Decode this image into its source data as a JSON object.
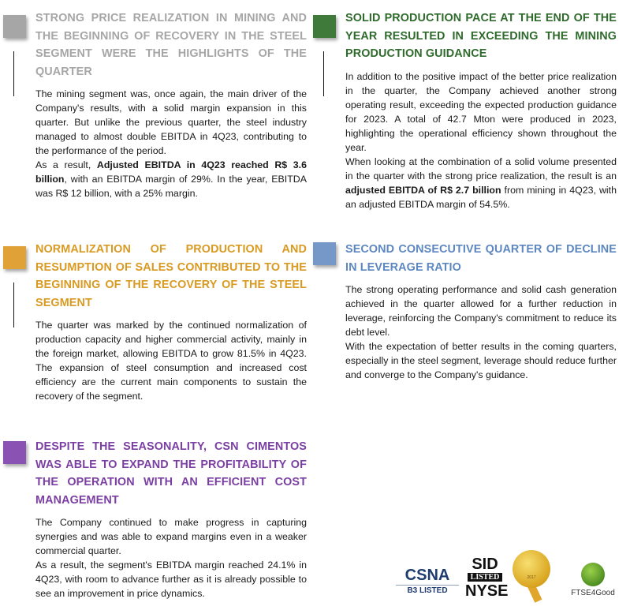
{
  "colors": {
    "gray": "#a6a6a6",
    "green": "#2f6b2c",
    "green_square": "#3f7a3b",
    "orange": "#d99a22",
    "orange_square": "#e0a236",
    "blue": "#5d87c0",
    "blue_square": "#7598c8",
    "purple": "#7b3fa3",
    "purple_square": "#8a52b3"
  },
  "sections": [
    {
      "title": "STRONG PRICE REALIZATION IN MINING AND THE BEGINNING OF RECOVERY IN THE STEEL SEGMENT WERE THE HIGHLIGHTS OF THE QUARTER",
      "paragraphs": [
        [
          {
            "text": "The mining segment was, once again, the main driver of the Company's results, with a solid margin expansion in this quarter. But unlike the previous quarter, the steel industry managed to almost double EBITDA in 4Q23, contributing to the performance of the period.",
            "bold": false
          }
        ],
        [
          {
            "text": "As a result, ",
            "bold": false
          },
          {
            "text": "Adjusted EBITDA in 4Q23 reached R$ 3.6 billion",
            "bold": true
          },
          {
            "text": ", with an EBITDA margin of 29%. In the year, EBITDA was R$ 12 billion, with a 25% margin.",
            "bold": false
          }
        ]
      ]
    },
    {
      "title": "SOLID PRODUCTION PACE AT THE END OF THE YEAR RESULTED IN EXCEEDING THE MINING PRODUCTION GUIDANCE",
      "paragraphs": [
        [
          {
            "text": "In addition to the positive impact of the better price realization in the quarter, the Company achieved another strong operating result, exceeding the expected production guidance for 2023. A total of 42.7 Mton were produced in 2023, highlighting the operational efficiency shown throughout the year.",
            "bold": false
          }
        ],
        [
          {
            "text": "When looking at the combination of a solid volume presented in the quarter with the strong price realization, the result is an ",
            "bold": false
          },
          {
            "text": "adjusted EBITDA of R$ 2.7 billion",
            "bold": true
          },
          {
            "text": " from mining in 4Q23, with an adjusted EBITDA margin of 54.5%.",
            "bold": false
          }
        ]
      ]
    },
    {
      "title": "NORMALIZATION OF PRODUCTION AND RESUMPTION OF SALES CONTRIBUTED TO THE BEGINNING OF THE RECOVERY OF THE STEEL SEGMENT",
      "paragraphs": [
        [
          {
            "text": "The quarter was marked by the continued normalization of production capacity and higher commercial activity, mainly in the foreign market, allowing EBITDA to grow 81.5% in 4Q23. The expansion of steel consumption and increased cost efficiency are the current main components to sustain the recovery of the segment.",
            "bold": false
          }
        ]
      ]
    },
    {
      "title": "SECOND CONSECUTIVE QUARTER OF DECLINE IN LEVERAGE RATIO",
      "paragraphs": [
        [
          {
            "text": "The strong operating performance and solid cash generation achieved in the quarter allowed for a further reduction in leverage, reinforcing the Company's commitment to reduce its debt level.",
            "bold": false
          }
        ],
        [
          {
            "text": "With the expectation of better results in the coming quarters, especially in the steel segment, leverage should reduce further and converge to the Company's guidance.",
            "bold": false
          }
        ]
      ]
    },
    {
      "title": "DESPITE THE SEASONALITY, CSN CIMENTOS WAS ABLE TO EXPAND THE PROFITABILITY OF THE OPERATION WITH AN EFFICIENT COST MANAGEMENT",
      "paragraphs": [
        [
          {
            "text": "The Company continued to make progress in capturing synergies and was able to expand margins even in a weaker commercial quarter.",
            "bold": false
          }
        ],
        [
          {
            "text": "As a result, the segment's EBITDA margin reached 24.1% in 4Q23, with room to advance further as it is already possible to see an improvement in price dynamics.",
            "bold": false
          }
        ]
      ]
    }
  ],
  "logos": {
    "csna": {
      "name": "CSNA",
      "sub": "B3 LISTED"
    },
    "sid": {
      "top": "SID",
      "mid": "LISTED",
      "bottom": "NYSE"
    },
    "seal": {
      "text": "2017"
    },
    "ftse": {
      "text": "FTSE4Good"
    }
  }
}
